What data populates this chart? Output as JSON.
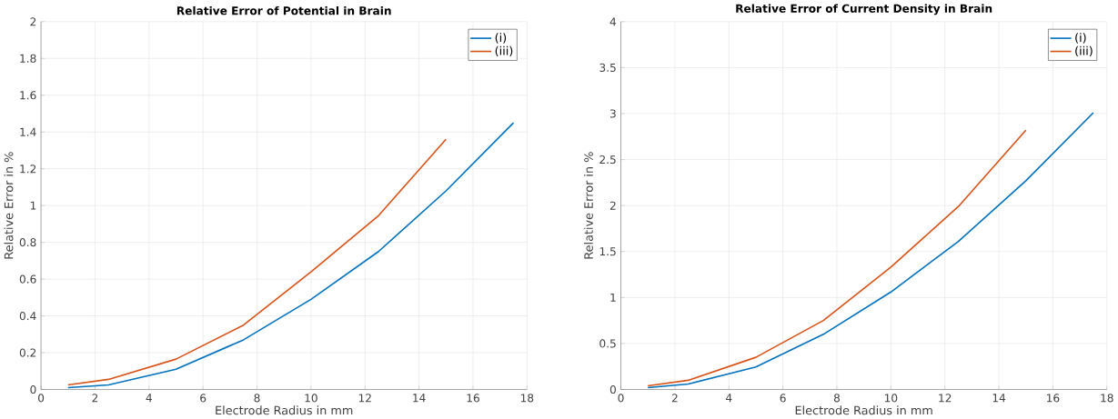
{
  "chart_data": [
    {
      "type": "line",
      "title": "Relative Error of Potential in Brain",
      "xlabel": "Electrode Radius in mm",
      "ylabel": "Relative Error in %",
      "x": [
        1,
        2.5,
        5,
        7.5,
        10,
        12.5,
        15,
        17.5
      ],
      "series": [
        {
          "name": "(i)",
          "color": "#0072bd",
          "values": [
            0.01,
            0.025,
            0.11,
            0.27,
            0.49,
            0.75,
            1.08,
            1.45
          ]
        },
        {
          "name": "(iii)",
          "color": "#d95319",
          "values": [
            0.025,
            0.055,
            0.165,
            0.35,
            0.64,
            0.945,
            1.36,
            null
          ]
        }
      ],
      "xlim": [
        0,
        18
      ],
      "ylim": [
        0,
        2
      ],
      "xticks": [
        0,
        2,
        4,
        6,
        8,
        10,
        12,
        14,
        16,
        18
      ],
      "yticks": [
        0,
        0.2,
        0.4,
        0.6,
        0.8,
        1,
        1.2,
        1.4,
        1.6,
        1.8,
        2
      ],
      "grid": true,
      "legend": "top right"
    },
    {
      "type": "line",
      "title": "Relative Error of Current Density in Brain",
      "xlabel": "Electrode Radius in mm",
      "ylabel": "Relative Error in %",
      "x": [
        1,
        2.5,
        5,
        7.5,
        10,
        12.5,
        15,
        17.5
      ],
      "series": [
        {
          "name": "(i)",
          "color": "#0072bd",
          "values": [
            0.02,
            0.06,
            0.245,
            0.6,
            1.06,
            1.61,
            2.27,
            3.01
          ]
        },
        {
          "name": "(iii)",
          "color": "#d95319",
          "values": [
            0.04,
            0.1,
            0.35,
            0.75,
            1.33,
            1.99,
            2.82,
            null
          ]
        }
      ],
      "xlim": [
        0,
        18
      ],
      "ylim": [
        0,
        4
      ],
      "xticks": [
        0,
        2,
        4,
        6,
        8,
        10,
        12,
        14,
        16,
        18
      ],
      "yticks": [
        0,
        0.5,
        1,
        1.5,
        2,
        2.5,
        3,
        3.5,
        4
      ],
      "grid": true,
      "legend": "top right"
    }
  ]
}
